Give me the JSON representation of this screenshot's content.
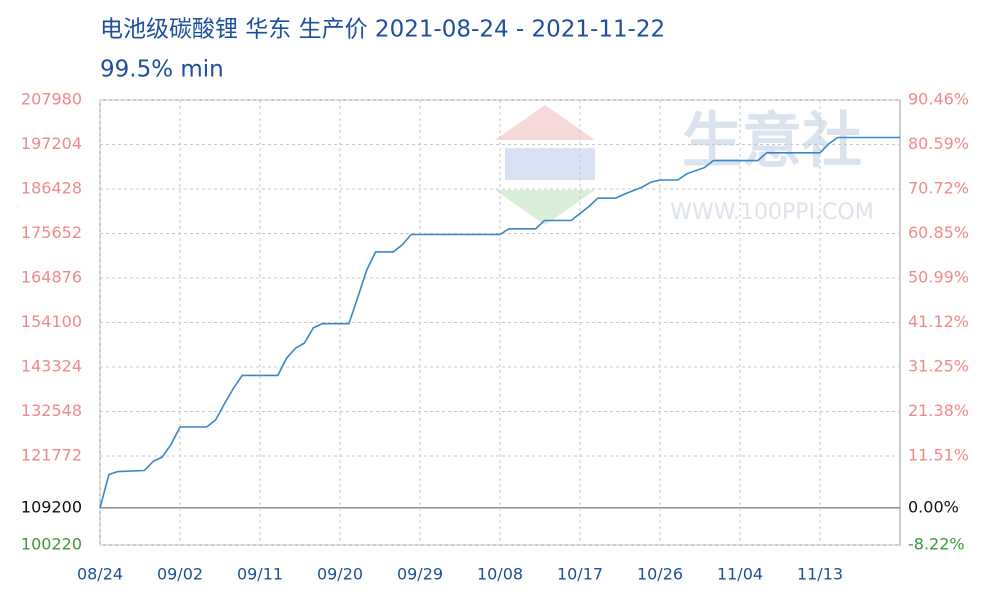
{
  "chart_data": {
    "type": "line",
    "title": "电池级碳酸锂 华东 生产价 2021-08-24 - 2021-11-22",
    "subtitle": "99.5% min",
    "watermark": [
      "生意社",
      "WWW.100PPI.COM"
    ],
    "color": "#3a86c8",
    "grid": true,
    "x": [
      "08/24",
      "08/25",
      "08/26",
      "08/29",
      "08/30",
      "08/31",
      "09/01",
      "09/02",
      "09/05",
      "09/06",
      "09/07",
      "09/08",
      "09/09",
      "09/13",
      "09/14",
      "09/15",
      "09/16",
      "09/17",
      "09/18",
      "09/21",
      "09/22",
      "09/23",
      "09/24",
      "09/26",
      "09/27",
      "09/28",
      "10/08",
      "10/09",
      "10/12",
      "10/13",
      "10/16",
      "10/18",
      "10/19",
      "10/20",
      "10/21",
      "10/22",
      "10/24",
      "10/25",
      "10/26",
      "10/28",
      "10/29",
      "10/31",
      "11/01",
      "11/06",
      "11/07",
      "11/13",
      "11/14",
      "11/15",
      "11/22"
    ],
    "values": [
      109200,
      117300,
      118000,
      118270,
      120500,
      121500,
      124600,
      128800,
      128800,
      130500,
      134400,
      138100,
      141300,
      141300,
      145500,
      147900,
      149100,
      152800,
      153800,
      153800,
      160200,
      166800,
      171200,
      171200,
      172900,
      175400,
      175400,
      176800,
      176800,
      178800,
      178800,
      182200,
      184200,
      184200,
      184200,
      185200,
      186900,
      188100,
      188600,
      188600,
      190100,
      191600,
      193300,
      193300,
      195200,
      195200,
      197400,
      198900,
      198900
    ],
    "xlim": [
      "08/24",
      "11/22"
    ],
    "xticks": [
      "08/24",
      "09/02",
      "09/11",
      "09/20",
      "09/29",
      "10/08",
      "10/17",
      "10/26",
      "11/04",
      "11/13"
    ],
    "ylim": [
      100220,
      207980
    ],
    "yticks": [
      207980,
      197204,
      186428,
      175652,
      164876,
      154100,
      143324,
      132548,
      121772,
      109200,
      100220
    ],
    "y2lim": [
      -8.22,
      90.46
    ],
    "y2ticks": [
      {
        "value": 90.46,
        "label": "90.46%"
      },
      {
        "value": 80.59,
        "label": "80.59%"
      },
      {
        "value": 70.72,
        "label": "70.72%"
      },
      {
        "value": 60.85,
        "label": "60.85%"
      },
      {
        "value": 50.99,
        "label": "50.99%"
      },
      {
        "value": 41.12,
        "label": "41.12%"
      },
      {
        "value": 31.25,
        "label": "31.25%"
      },
      {
        "value": 21.38,
        "label": "21.38%"
      },
      {
        "value": 11.51,
        "label": "11.51%"
      },
      {
        "value": 0,
        "label": "0.00%"
      },
      {
        "value": -8.22,
        "label": "-8.22%"
      }
    ]
  }
}
